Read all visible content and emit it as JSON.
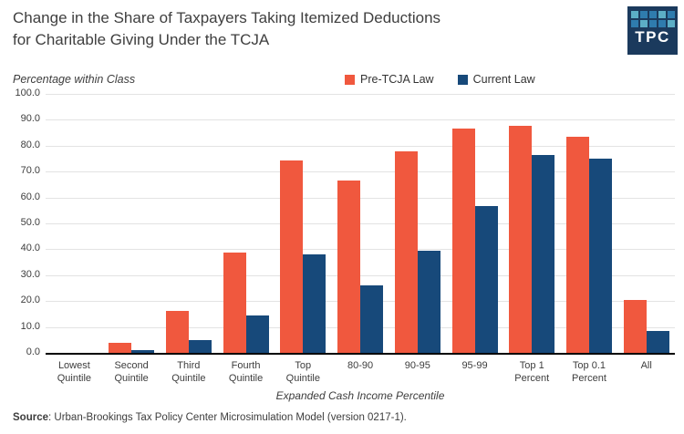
{
  "header": {
    "title": "Change in the Share of Taxpayers Taking Itemized Deductions\nfor Charitable Giving Under the TCJA"
  },
  "logo": {
    "text": "TPC",
    "bg_color": "#1b3a5d",
    "grid_colors": [
      "#5caec6",
      "#2f7cae",
      "#2f7cae",
      "#5caec6",
      "#2f7cae",
      "#2f7cae",
      "#5caec6",
      "#2f7cae",
      "#2f7cae",
      "#5caec6"
    ]
  },
  "colors": {
    "pre_tcja": "#f0583e",
    "current_law": "#17497a",
    "gridline": "#e3e3e3",
    "axis_line": "#000000",
    "title_text": "#3f3f3f"
  },
  "chart_data": {
    "type": "bar",
    "title": "Change in the Share of Taxpayers Taking Itemized Deductions for Charitable Giving Under the TCJA",
    "unit_label": "Percentage within Class",
    "xlabel": "Expanded Cash Income Percentile",
    "ylim": [
      0,
      100
    ],
    "grid": true,
    "legend_position": "top",
    "yticks": [
      "0.0",
      "10.0",
      "20.0",
      "30.0",
      "40.0",
      "50.0",
      "60.0",
      "70.0",
      "80.0",
      "90.0",
      "100.0"
    ],
    "categories": [
      "Lowest Quintile",
      "Second Quintile",
      "Third Quintile",
      "Fourth Quintile",
      "Top Quintile",
      "80-90",
      "90-95",
      "95-99",
      "Top 1 Percent",
      "Top 0.1 Percent",
      "All"
    ],
    "categories_display": [
      "Lowest\nQuintile",
      "Second\nQuintile",
      "Third\nQuintile",
      "Fourth\nQuintile",
      "Top\nQuintile",
      "80-90",
      "90-95",
      "95-99",
      "Top 1\nPercent",
      "Top 0.1\nPercent",
      "All"
    ],
    "series": [
      {
        "name": "Pre-TCJA Law",
        "color": "#f0583e",
        "values": [
          0.0,
          3.9,
          16.3,
          38.9,
          74.3,
          66.7,
          77.9,
          86.7,
          87.6,
          83.5,
          20.5
        ]
      },
      {
        "name": "Current Law",
        "color": "#17497a",
        "values": [
          0.0,
          0.9,
          4.9,
          14.5,
          38.0,
          26.2,
          39.6,
          56.7,
          76.5,
          74.9,
          8.5
        ]
      }
    ]
  },
  "source": {
    "label": "Source",
    "text": ": Urban-Brookings Tax Policy Center Microsimulation Model (version 0217-1)."
  }
}
